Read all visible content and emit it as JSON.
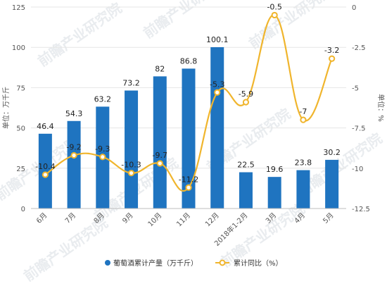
{
  "watermark": "前瞻产业研究院",
  "chart_data": {
    "type": "bar+line",
    "categories": [
      "6月",
      "7月",
      "8月",
      "9月",
      "10月",
      "11月",
      "12月",
      "2018年1-2月",
      "3月",
      "4月",
      "5月"
    ],
    "series": [
      {
        "name": "葡萄酒累计产量（万千斤）",
        "type": "bar",
        "axis": "left",
        "color": "#1f74c0",
        "values": [
          46.4,
          54.3,
          63.2,
          73.2,
          82,
          86.8,
          100.1,
          22.5,
          19.6,
          23.8,
          30.2
        ]
      },
      {
        "name": "累计同比（%）",
        "type": "line",
        "axis": "right",
        "color": "#f0b52d",
        "values": [
          -10.4,
          -9.2,
          -9.3,
          -10.3,
          -9.7,
          -11.2,
          -5.3,
          -5.9,
          -0.5,
          -7,
          -3.2
        ]
      }
    ],
    "left_axis": {
      "label": "单位：万千斤",
      "min": 0,
      "max": 125,
      "ticks": [
        0,
        25,
        50,
        75,
        100,
        125
      ]
    },
    "right_axis": {
      "label": "单位：%",
      "min": -12.5,
      "max": 0,
      "ticks": [
        0,
        -2.5,
        -5,
        -7.5,
        -10,
        -12.5
      ]
    },
    "legend_position": "bottom",
    "grid": true
  }
}
